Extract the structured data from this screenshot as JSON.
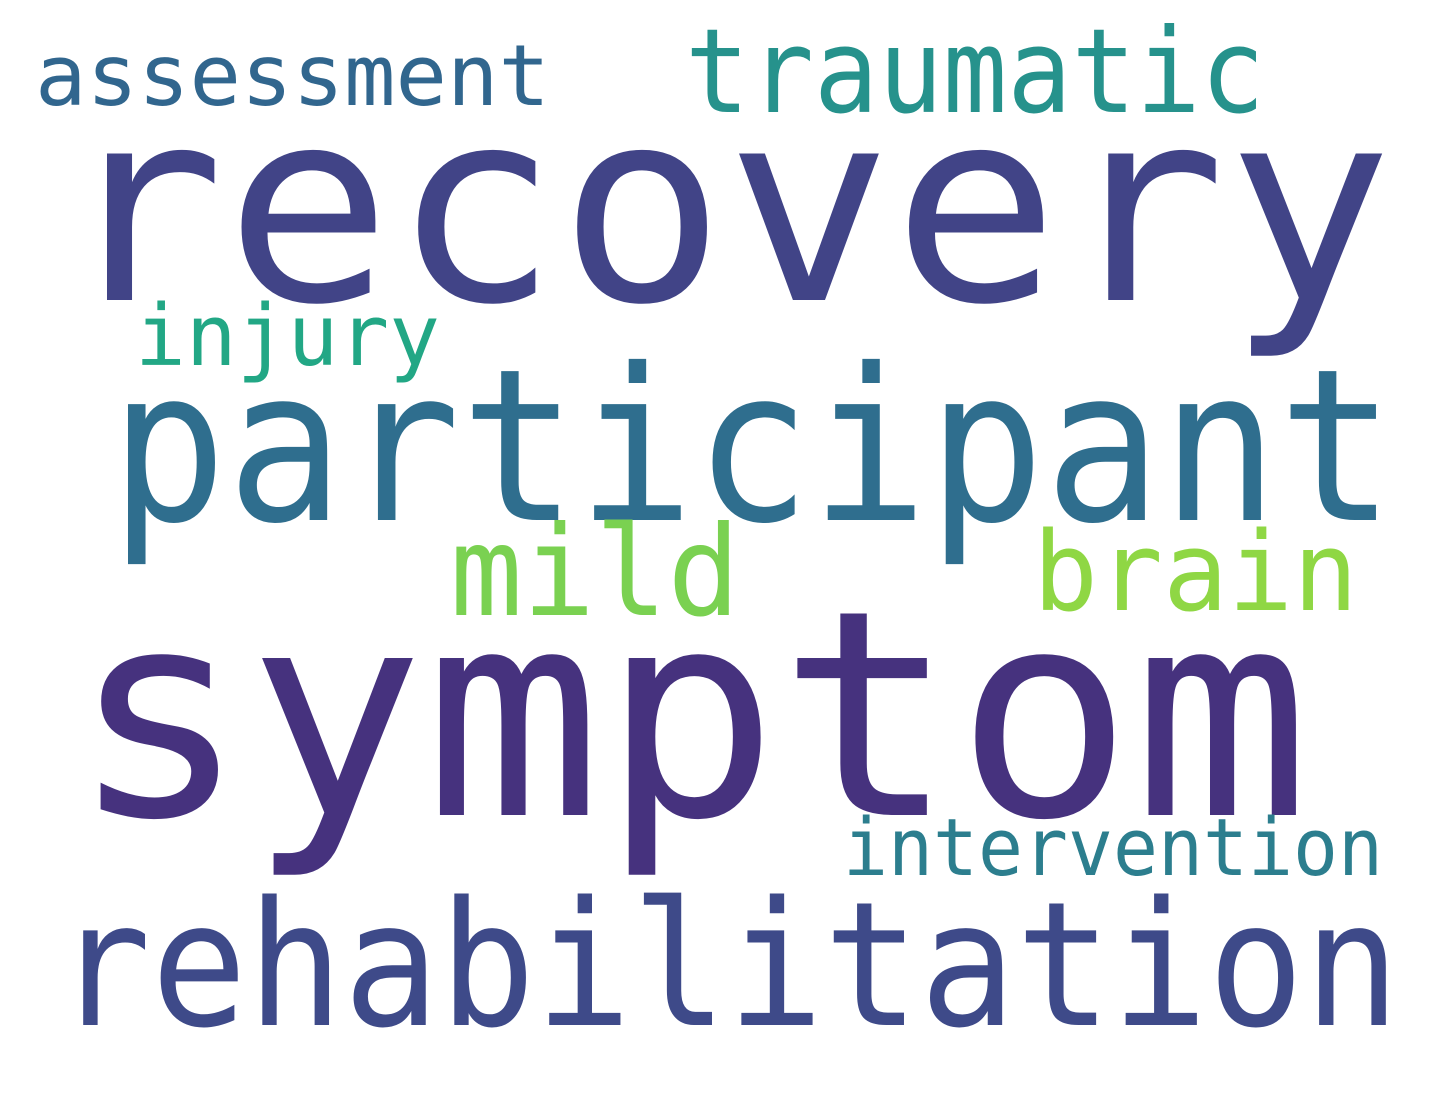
{
  "words": [
    {
      "text": "recovery",
      "color": "#414487",
      "weight": 1
    },
    {
      "text": "symptom",
      "color": "#46327e",
      "weight": 1
    },
    {
      "text": "participant",
      "color": "#2f6e8e",
      "weight": 0.8
    },
    {
      "text": "rehabilitation",
      "color": "#3e4a89",
      "weight": 0.6
    },
    {
      "text": "traumatic",
      "color": "#26928c",
      "weight": 0.4
    },
    {
      "text": "assessment",
      "color": "#31668e",
      "weight": 0.3
    },
    {
      "text": "injury",
      "color": "#22a785",
      "weight": 0.3
    },
    {
      "text": "mild",
      "color": "#7ad151",
      "weight": 0.4
    },
    {
      "text": "brain",
      "color": "#8fd744",
      "weight": 0.4
    },
    {
      "text": "intervention",
      "color": "#2c7e8e",
      "weight": 0.3
    }
  ]
}
